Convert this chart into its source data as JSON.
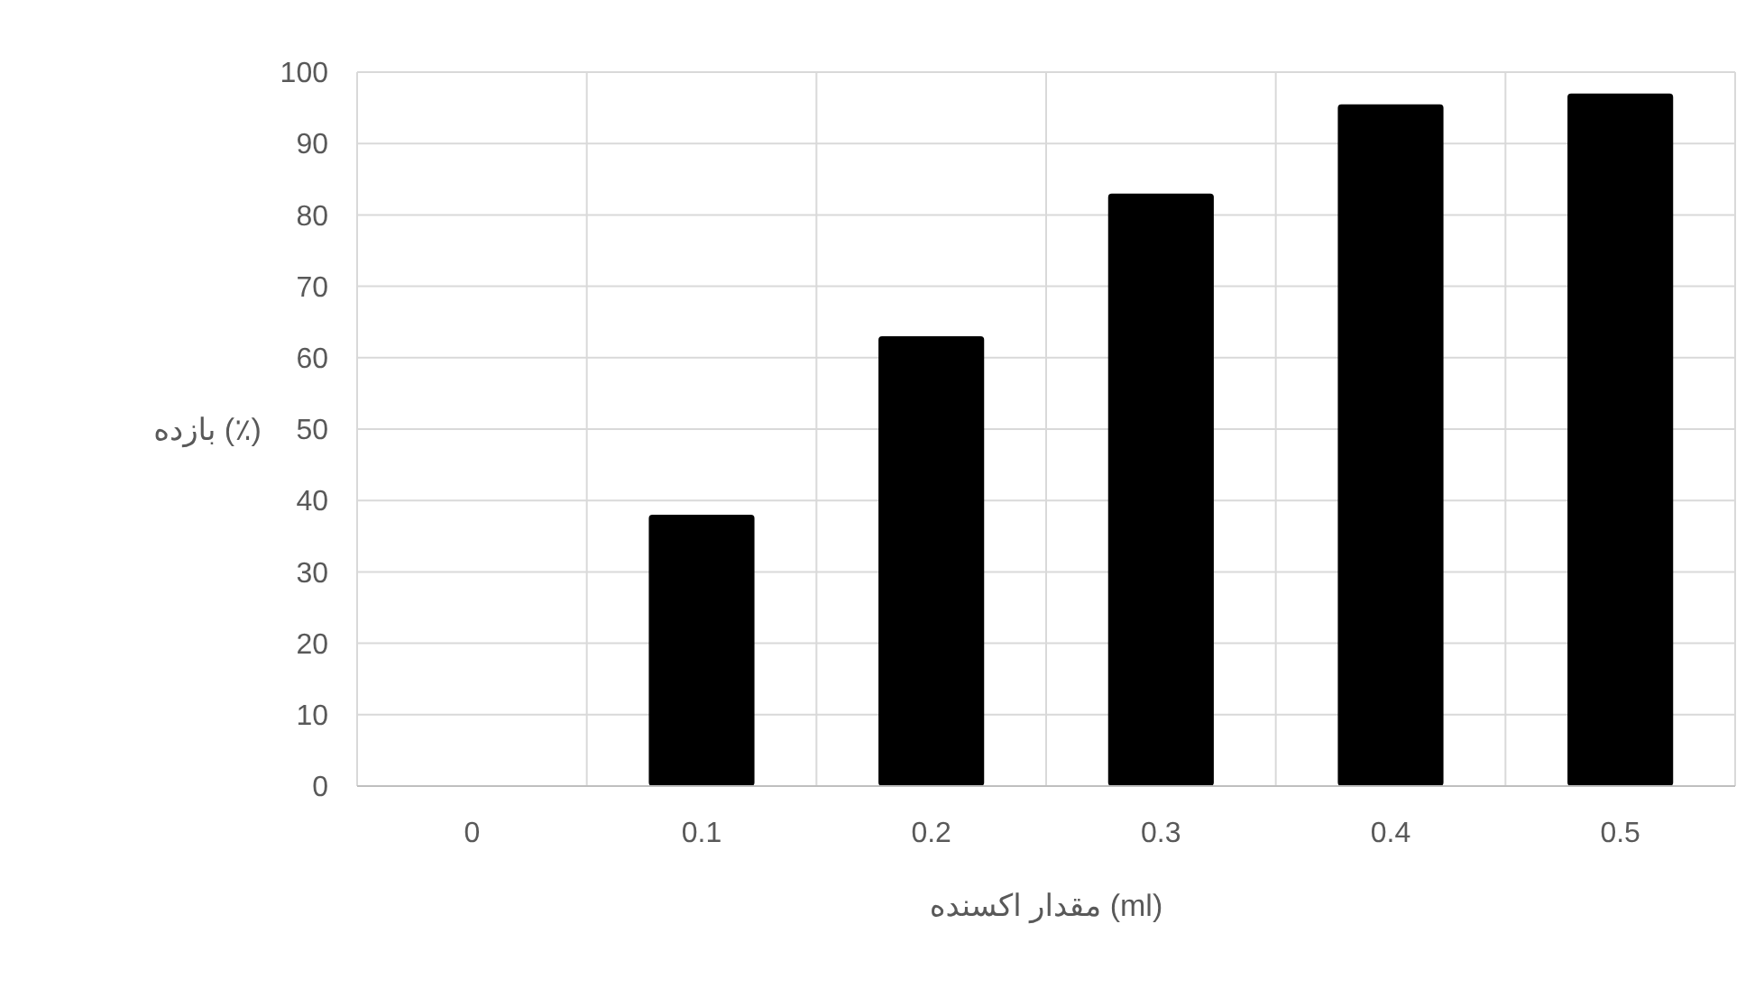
{
  "chart_data": {
    "type": "bar",
    "categories": [
      "0",
      "0.1",
      "0.2",
      "0.3",
      "0.4",
      "0.5"
    ],
    "values": [
      0,
      38,
      63,
      83,
      95.5,
      97
    ],
    "color": "#000000",
    "ylim": [
      0,
      100
    ],
    "yticks": [
      0,
      10,
      20,
      30,
      40,
      50,
      60,
      70,
      80,
      90,
      100
    ],
    "grid": true,
    "xlabel": "مقدار اکسنده (ml)",
    "ylabel": "بازده (٪)"
  }
}
